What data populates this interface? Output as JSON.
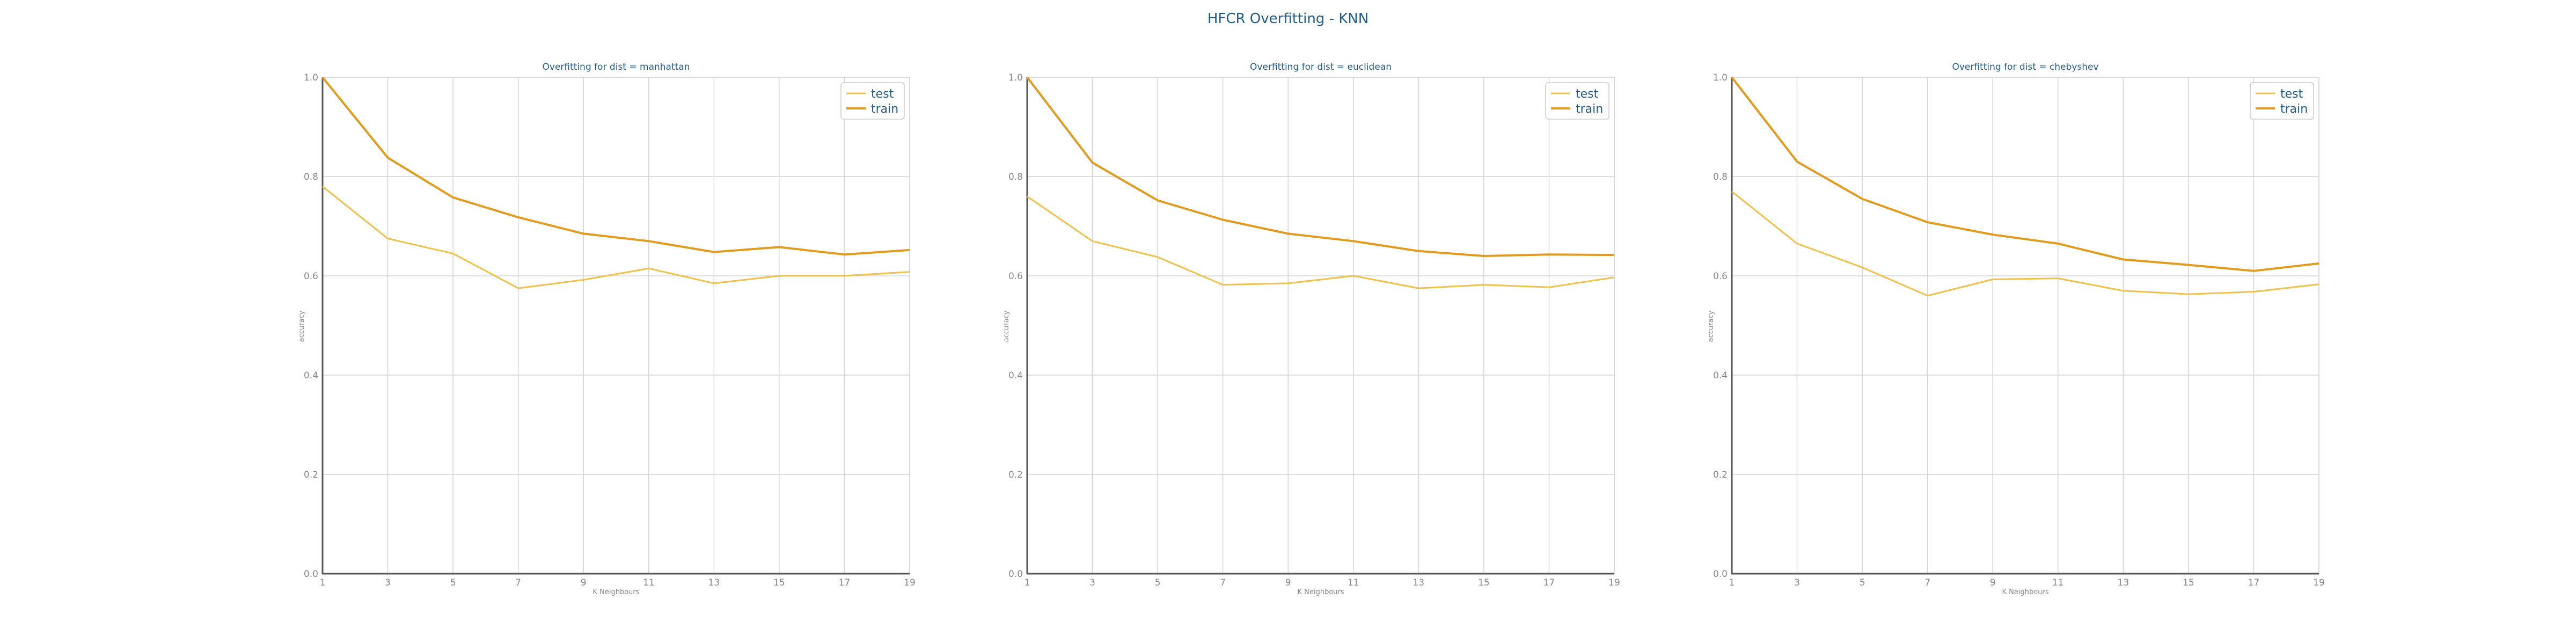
{
  "figure": {
    "title": "HFCR Overfitting - KNN"
  },
  "chart_data": [
    {
      "type": "line",
      "title": "Overfitting for dist = manhattan",
      "xlabel": "K Neighbours",
      "ylabel": "accuracy",
      "x": [
        1,
        3,
        5,
        7,
        9,
        11,
        13,
        15,
        17,
        19
      ],
      "xlim": [
        1,
        19
      ],
      "ylim": [
        0.0,
        1.0
      ],
      "yticks": [
        "0.0",
        "0.2",
        "0.4",
        "0.6",
        "0.8",
        "1.0"
      ],
      "grid": true,
      "legend_position": "top-right",
      "series": [
        {
          "name": "test",
          "color": "#f0c14b",
          "values": [
            0.78,
            0.675,
            0.645,
            0.575,
            0.592,
            0.615,
            0.585,
            0.6,
            0.6,
            0.608
          ]
        },
        {
          "name": "train",
          "color": "#e39b1e",
          "values": [
            1.0,
            0.838,
            0.758,
            0.718,
            0.685,
            0.67,
            0.648,
            0.658,
            0.643,
            0.652
          ]
        }
      ]
    },
    {
      "type": "line",
      "title": "Overfitting for dist = euclidean",
      "xlabel": "K Neighbours",
      "ylabel": "accuracy",
      "x": [
        1,
        3,
        5,
        7,
        9,
        11,
        13,
        15,
        17,
        19
      ],
      "xlim": [
        1,
        19
      ],
      "ylim": [
        0.0,
        1.0
      ],
      "yticks": [
        "0.0",
        "0.2",
        "0.4",
        "0.6",
        "0.8",
        "1.0"
      ],
      "grid": true,
      "legend_position": "top-right",
      "series": [
        {
          "name": "test",
          "color": "#f0c14b",
          "values": [
            0.76,
            0.67,
            0.638,
            0.582,
            0.585,
            0.6,
            0.575,
            0.582,
            0.577,
            0.597
          ]
        },
        {
          "name": "train",
          "color": "#e39b1e",
          "values": [
            1.0,
            0.828,
            0.752,
            0.713,
            0.685,
            0.67,
            0.65,
            0.64,
            0.643,
            0.642
          ]
        }
      ]
    },
    {
      "type": "line",
      "title": "Overfitting for dist = chebyshev",
      "xlabel": "K Neighbours",
      "ylabel": "accuracy",
      "x": [
        1,
        3,
        5,
        7,
        9,
        11,
        13,
        15,
        17,
        19
      ],
      "xlim": [
        1,
        19
      ],
      "ylim": [
        0.0,
        1.0
      ],
      "yticks": [
        "0.0",
        "0.2",
        "0.4",
        "0.6",
        "0.8",
        "1.0"
      ],
      "grid": true,
      "legend_position": "top-right",
      "series": [
        {
          "name": "test",
          "color": "#f0c14b",
          "values": [
            0.77,
            0.665,
            0.617,
            0.56,
            0.593,
            0.595,
            0.57,
            0.563,
            0.568,
            0.583
          ]
        },
        {
          "name": "train",
          "color": "#e39b1e",
          "values": [
            1.0,
            0.83,
            0.755,
            0.708,
            0.683,
            0.665,
            0.633,
            0.622,
            0.61,
            0.625
          ]
        }
      ]
    }
  ]
}
